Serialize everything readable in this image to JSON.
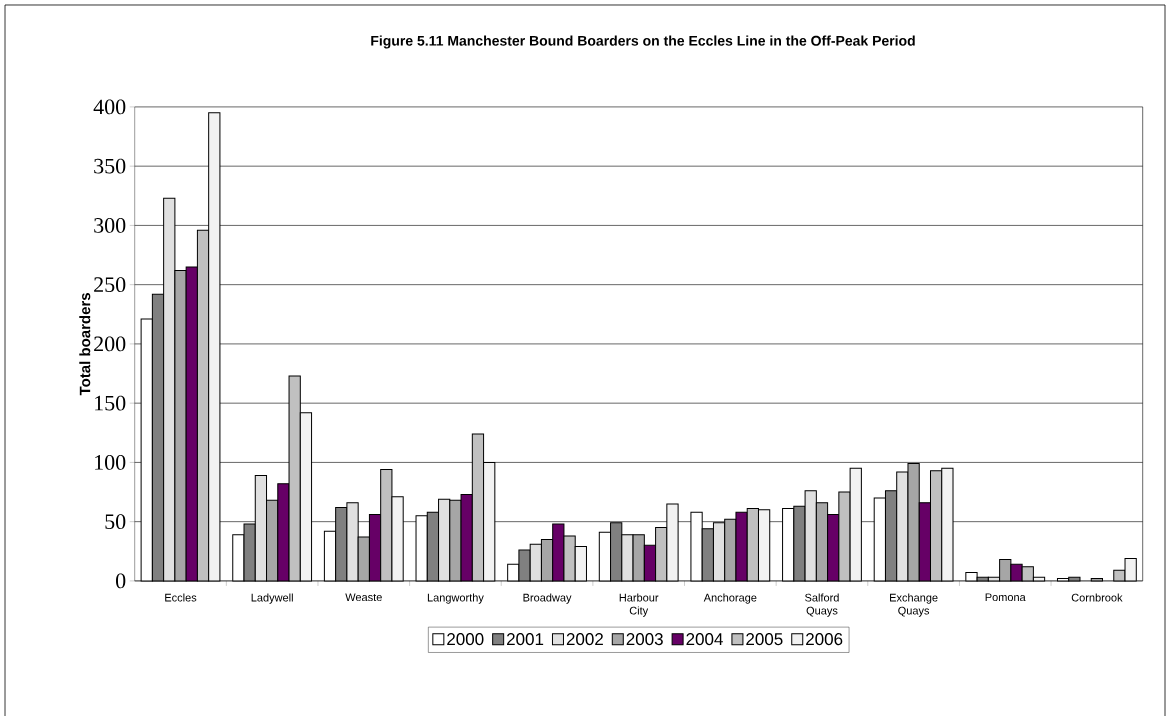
{
  "chart_data": {
    "type": "bar",
    "title": "**Figure 5.11 Manchester Bound Boarders on the Eccles Line in the Off-Peak Period**",
    "ylabel": "Total boarders",
    "categories": [
      "Eccles",
      "Ladywell",
      "Weaste",
      "Langworthy",
      "Broadway",
      "Harbour City",
      "Anchorage",
      "Salford Quays",
      "Exchange Quays",
      "Pomona",
      "Cornbrook"
    ],
    "series": [
      {
        "name": "2000",
        "color": "#ffffff",
        "values": [
          221,
          39,
          42,
          55,
          14,
          41,
          58,
          61,
          70,
          7,
          2
        ]
      },
      {
        "name": "2001",
        "color": "#808080",
        "values": [
          242,
          48,
          62,
          58,
          26,
          49,
          44,
          63,
          76,
          3,
          3
        ]
      },
      {
        "name": "2002",
        "color": "#e0e0e0",
        "values": [
          323,
          89,
          66,
          69,
          31,
          39,
          49,
          76,
          92,
          3,
          null
        ]
      },
      {
        "name": "2003",
        "color": "#a6a6a6",
        "values": [
          262,
          68,
          37,
          68,
          35,
          39,
          52,
          66,
          99,
          18,
          2
        ]
      },
      {
        "name": "2004",
        "color": "#660066",
        "values": [
          265,
          82,
          56,
          73,
          48,
          30,
          58,
          56,
          66,
          14,
          null
        ]
      },
      {
        "name": "2005",
        "color": "#c0c0c0",
        "values": [
          296,
          173,
          94,
          124,
          38,
          45,
          61,
          75,
          93,
          12,
          9
        ]
      },
      {
        "name": "2006",
        "color": "#f2f2f2",
        "values": [
          395,
          142,
          71,
          100,
          29,
          65,
          60,
          95,
          95,
          3,
          19
        ]
      }
    ],
    "ylim": [
      0,
      400
    ],
    "yticks": [
      0,
      50,
      100,
      150,
      200,
      250,
      300,
      350,
      400
    ],
    "grid": "y",
    "legend": "bottom"
  }
}
